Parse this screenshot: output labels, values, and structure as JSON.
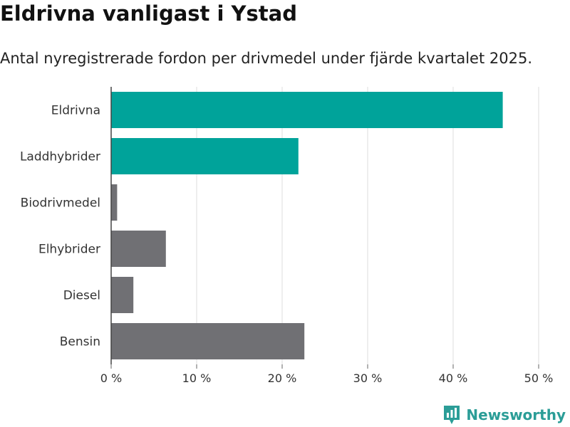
{
  "header": {
    "title": "Eldrivna vanligast i Ystad",
    "subtitle": "Antal nyregistrerade fordon per drivmedel under fjärde kvartalet 2025."
  },
  "branding": {
    "name": "Newsworthy",
    "icon": "bar-chart-logo-icon"
  },
  "colors": {
    "highlight": "#00a39a",
    "default": "#707074",
    "grid": "#dddddd",
    "brand": "#2b9d97"
  },
  "chart_data": {
    "type": "bar",
    "orientation": "horizontal",
    "title": "Eldrivna vanligast i Ystad",
    "subtitle": "Antal nyregistrerade fordon per drivmedel under fjärde kvartalet 2025.",
    "xlabel": "",
    "ylabel": "",
    "xlim": [
      0,
      50
    ],
    "grid": true,
    "categories": [
      "Eldrivna",
      "Laddhybrider",
      "Biodrivmedel",
      "Elhybrider",
      "Diesel",
      "Bensin"
    ],
    "values": [
      45.8,
      21.9,
      0.7,
      6.4,
      2.6,
      22.6
    ],
    "highlighted": [
      true,
      true,
      false,
      false,
      false,
      false
    ],
    "ticks": [
      0,
      10,
      20,
      30,
      40,
      50
    ],
    "tick_labels": [
      "0 %",
      "10 %",
      "20 %",
      "30 %",
      "40 %",
      "50 %"
    ]
  }
}
